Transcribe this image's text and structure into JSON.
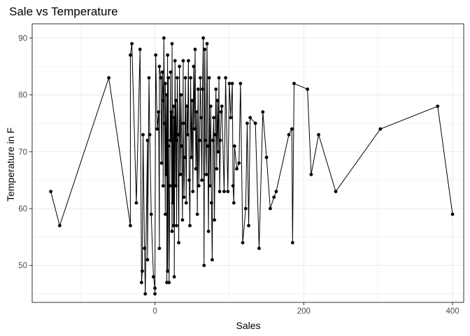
{
  "chart_data": {
    "type": "line",
    "title": "Sale vs Temperature",
    "xlabel": "Sales",
    "ylabel": "Temperature in F",
    "xlim": [
      -165,
      415
    ],
    "ylim": [
      43.5,
      92.5
    ],
    "x_ticks": [
      0,
      200,
      400
    ],
    "y_ticks": [
      50,
      60,
      70,
      80,
      90
    ],
    "grid": true,
    "markers": true,
    "series_color": "#000000",
    "grid_color": "#ebebeb",
    "panel_border_color": "#333333",
    "points": [
      {
        "x": -140,
        "y": 63
      },
      {
        "x": -128,
        "y": 57
      },
      {
        "x": -62,
        "y": 83
      },
      {
        "x": -33,
        "y": 57
      },
      {
        "x": -33,
        "y": 87
      },
      {
        "x": -31,
        "y": 89
      },
      {
        "x": -25,
        "y": 61
      },
      {
        "x": -20,
        "y": 88
      },
      {
        "x": -18,
        "y": 47
      },
      {
        "x": -17,
        "y": 49
      },
      {
        "x": -16,
        "y": 73
      },
      {
        "x": -14,
        "y": 53
      },
      {
        "x": -13,
        "y": 45
      },
      {
        "x": -10,
        "y": 72
      },
      {
        "x": -10,
        "y": 51
      },
      {
        "x": -8,
        "y": 83
      },
      {
        "x": -7,
        "y": 73
      },
      {
        "x": -5,
        "y": 59
      },
      {
        "x": -2,
        "y": 48
      },
      {
        "x": 0,
        "y": 46
      },
      {
        "x": 0,
        "y": 45
      },
      {
        "x": 1,
        "y": 87
      },
      {
        "x": 3,
        "y": 74
      },
      {
        "x": 5,
        "y": 77
      },
      {
        "x": 6,
        "y": 53
      },
      {
        "x": 6,
        "y": 85
      },
      {
        "x": 8,
        "y": 83
      },
      {
        "x": 9,
        "y": 68
      },
      {
        "x": 10,
        "y": 84
      },
      {
        "x": 11,
        "y": 79
      },
      {
        "x": 11,
        "y": 64
      },
      {
        "x": 12,
        "y": 90
      },
      {
        "x": 13,
        "y": 75
      },
      {
        "x": 14,
        "y": 59
      },
      {
        "x": 14,
        "y": 82
      },
      {
        "x": 15,
        "y": 66
      },
      {
        "x": 16,
        "y": 80
      },
      {
        "x": 16,
        "y": 47
      },
      {
        "x": 17,
        "y": 87
      },
      {
        "x": 17,
        "y": 49
      },
      {
        "x": 18,
        "y": 71
      },
      {
        "x": 18,
        "y": 83
      },
      {
        "x": 19,
        "y": 47
      },
      {
        "x": 20,
        "y": 64
      },
      {
        "x": 21,
        "y": 84
      },
      {
        "x": 21,
        "y": 72
      },
      {
        "x": 22,
        "y": 77
      },
      {
        "x": 23,
        "y": 56
      },
      {
        "x": 23,
        "y": 89
      },
      {
        "x": 24,
        "y": 61
      },
      {
        "x": 25,
        "y": 78
      },
      {
        "x": 25,
        "y": 57
      },
      {
        "x": 26,
        "y": 76
      },
      {
        "x": 26,
        "y": 48
      },
      {
        "x": 27,
        "y": 86
      },
      {
        "x": 28,
        "y": 64
      },
      {
        "x": 28,
        "y": 79
      },
      {
        "x": 29,
        "y": 72
      },
      {
        "x": 29,
        "y": 57
      },
      {
        "x": 30,
        "y": 83
      },
      {
        "x": 31,
        "y": 73
      },
      {
        "x": 32,
        "y": 54
      },
      {
        "x": 33,
        "y": 85
      },
      {
        "x": 34,
        "y": 66
      },
      {
        "x": 35,
        "y": 80
      },
      {
        "x": 36,
        "y": 71
      },
      {
        "x": 37,
        "y": 58
      },
      {
        "x": 38,
        "y": 86
      },
      {
        "x": 38,
        "y": 75
      },
      {
        "x": 39,
        "y": 62
      },
      {
        "x": 40,
        "y": 69
      },
      {
        "x": 41,
        "y": 83
      },
      {
        "x": 42,
        "y": 61
      },
      {
        "x": 43,
        "y": 78
      },
      {
        "x": 44,
        "y": 73
      },
      {
        "x": 45,
        "y": 86
      },
      {
        "x": 46,
        "y": 65
      },
      {
        "x": 47,
        "y": 57
      },
      {
        "x": 48,
        "y": 83
      },
      {
        "x": 49,
        "y": 69
      },
      {
        "x": 50,
        "y": 79
      },
      {
        "x": 51,
        "y": 63
      },
      {
        "x": 52,
        "y": 85
      },
      {
        "x": 53,
        "y": 74
      },
      {
        "x": 54,
        "y": 88
      },
      {
        "x": 55,
        "y": 67
      },
      {
        "x": 56,
        "y": 77
      },
      {
        "x": 57,
        "y": 59
      },
      {
        "x": 58,
        "y": 81
      },
      {
        "x": 59,
        "y": 64
      },
      {
        "x": 60,
        "y": 72
      },
      {
        "x": 61,
        "y": 83
      },
      {
        "x": 62,
        "y": 76
      },
      {
        "x": 63,
        "y": 65
      },
      {
        "x": 64,
        "y": 81
      },
      {
        "x": 65,
        "y": 90
      },
      {
        "x": 66,
        "y": 50
      },
      {
        "x": 67,
        "y": 88
      },
      {
        "x": 68,
        "y": 72
      },
      {
        "x": 69,
        "y": 66
      },
      {
        "x": 70,
        "y": 89
      },
      {
        "x": 71,
        "y": 71
      },
      {
        "x": 72,
        "y": 56
      },
      {
        "x": 73,
        "y": 83
      },
      {
        "x": 74,
        "y": 64
      },
      {
        "x": 75,
        "y": 78
      },
      {
        "x": 76,
        "y": 61
      },
      {
        "x": 77,
        "y": 51
      },
      {
        "x": 78,
        "y": 72
      },
      {
        "x": 79,
        "y": 76
      },
      {
        "x": 80,
        "y": 58
      },
      {
        "x": 81,
        "y": 73
      },
      {
        "x": 82,
        "y": 81
      },
      {
        "x": 83,
        "y": 67
      },
      {
        "x": 84,
        "y": 79
      },
      {
        "x": 85,
        "y": 70
      },
      {
        "x": 86,
        "y": 83
      },
      {
        "x": 87,
        "y": 63
      },
      {
        "x": 88,
        "y": 72
      },
      {
        "x": 89,
        "y": 77
      },
      {
        "x": 90,
        "y": 78
      },
      {
        "x": 93,
        "y": 63
      },
      {
        "x": 95,
        "y": 83
      },
      {
        "x": 98,
        "y": 63
      },
      {
        "x": 100,
        "y": 82
      },
      {
        "x": 102,
        "y": 76
      },
      {
        "x": 104,
        "y": 82
      },
      {
        "x": 105,
        "y": 64
      },
      {
        "x": 106,
        "y": 61
      },
      {
        "x": 107,
        "y": 71
      },
      {
        "x": 110,
        "y": 67
      },
      {
        "x": 113,
        "y": 68
      },
      {
        "x": 115,
        "y": 82
      },
      {
        "x": 118,
        "y": 54
      },
      {
        "x": 122,
        "y": 60
      },
      {
        "x": 124,
        "y": 75
      },
      {
        "x": 126,
        "y": 57
      },
      {
        "x": 128,
        "y": 76
      },
      {
        "x": 135,
        "y": 75
      },
      {
        "x": 140,
        "y": 53
      },
      {
        "x": 145,
        "y": 77
      },
      {
        "x": 150,
        "y": 69
      },
      {
        "x": 155,
        "y": 60
      },
      {
        "x": 160,
        "y": 62
      },
      {
        "x": 163,
        "y": 63
      },
      {
        "x": 180,
        "y": 73
      },
      {
        "x": 184,
        "y": 74
      },
      {
        "x": 185,
        "y": 54
      },
      {
        "x": 187,
        "y": 82
      },
      {
        "x": 205,
        "y": 81
      },
      {
        "x": 210,
        "y": 66
      },
      {
        "x": 220,
        "y": 73
      },
      {
        "x": 243,
        "y": 63
      },
      {
        "x": 303,
        "y": 74
      },
      {
        "x": 380,
        "y": 78
      },
      {
        "x": 400,
        "y": 59
      }
    ]
  }
}
